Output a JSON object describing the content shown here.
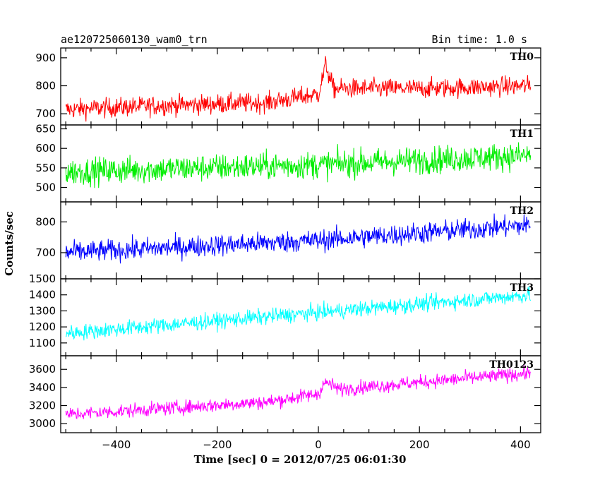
{
  "header": {
    "left": "ae120725060130_wam0_trn",
    "right": "Bin time: 1.0 s"
  },
  "axes": {
    "xlabel": "Time [sec] 0 = 2012/07/25 06:01:30",
    "ylabel": "Counts/sec"
  },
  "chart_data": {
    "type": "line",
    "xlim": [
      -510,
      440
    ],
    "xticks": [
      -400,
      -200,
      0,
      200,
      400
    ],
    "xtick_labels": [
      "−400",
      "−200",
      "0",
      "200",
      "400"
    ],
    "x_range": [
      -500,
      420
    ],
    "bin_time_s": 1.0,
    "grid": false,
    "panels": [
      {
        "name": "TH0",
        "color": "#ff0000",
        "ylim": [
          660,
          935
        ],
        "yticks": [
          700,
          800,
          900
        ],
        "trend_x": [
          -500,
          -300,
          -100,
          0,
          10,
          15,
          20,
          30,
          200,
          420
        ],
        "trend_y": [
          715,
          730,
          740,
          770,
          840,
          880,
          840,
          790,
          790,
          800
        ],
        "noise": 25
      },
      {
        "name": "TH1",
        "color": "#00ee00",
        "ylim": [
          463,
          660
        ],
        "yticks": [
          500,
          550,
          600,
          650
        ],
        "trend_x": [
          -500,
          0,
          420
        ],
        "trend_y": [
          540,
          558,
          582
        ],
        "noise": 25
      },
      {
        "name": "TH2",
        "color": "#0000ff",
        "ylim": [
          615,
          865
        ],
        "yticks": [
          700,
          800
        ],
        "trend_x": [
          -500,
          0,
          420
        ],
        "trend_y": [
          700,
          740,
          790
        ],
        "noise": 25
      },
      {
        "name": "TH3",
        "color": "#00ffff",
        "ylim": [
          1020,
          1500
        ],
        "yticks": [
          1100,
          1200,
          1300,
          1400,
          1500
        ],
        "trend_x": [
          -500,
          0,
          420
        ],
        "trend_y": [
          1160,
          1290,
          1400
        ],
        "noise": 35
      },
      {
        "name": "TH0123",
        "color": "#ff00ff",
        "ylim": [
          2900,
          3750
        ],
        "yticks": [
          3000,
          3200,
          3400,
          3600
        ],
        "trend_x": [
          -500,
          -100,
          0,
          10,
          20,
          40,
          420
        ],
        "trend_y": [
          3100,
          3240,
          3330,
          3440,
          3450,
          3380,
          3560
        ],
        "noise": 55
      }
    ]
  }
}
